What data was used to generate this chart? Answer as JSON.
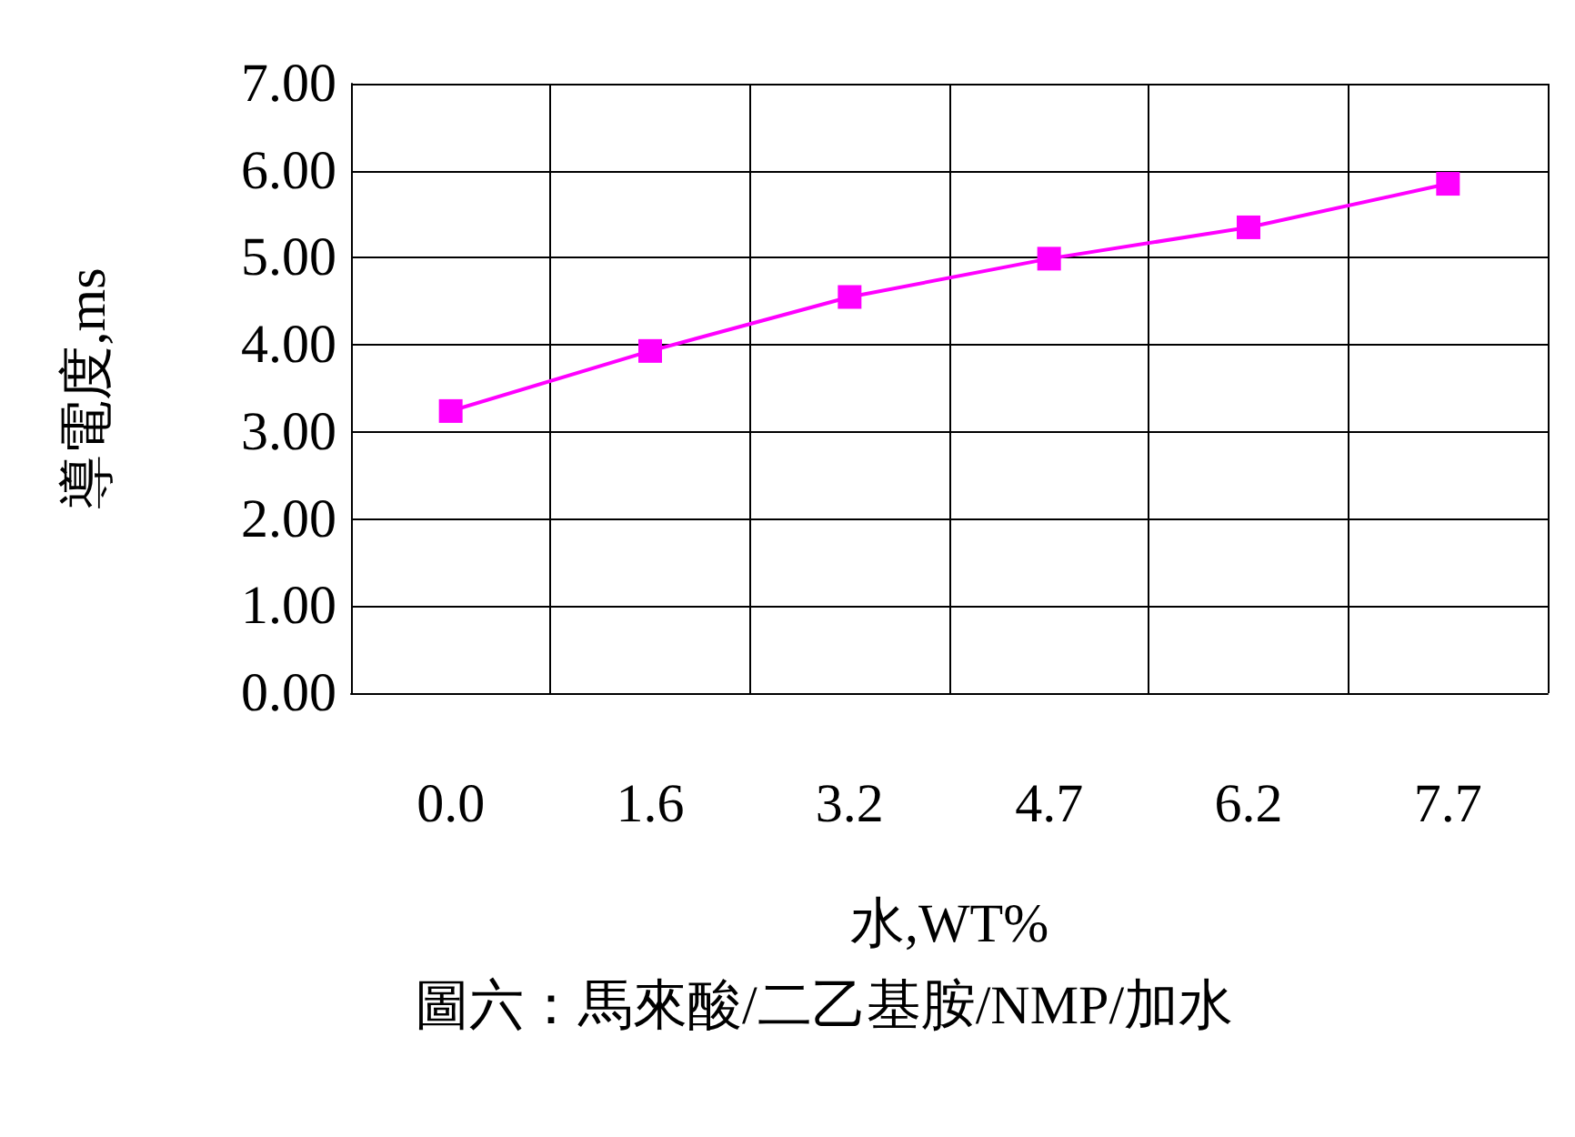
{
  "chart_data": {
    "type": "line",
    "xlabel": "水,WT%",
    "ylabel": "導電度,ms",
    "annotations": [
      "圖六：馬來酸/二乙基胺/NMP/加水"
    ],
    "categories": [
      "0.0",
      "1.6",
      "3.2",
      "4.7",
      "6.2",
      "7.7"
    ],
    "series": [
      {
        "color": "#ff00ff",
        "values": [
          3.24,
          3.93,
          4.55,
          4.99,
          5.35,
          5.85
        ]
      }
    ],
    "ylim": [
      0,
      7
    ],
    "yticks": [
      {
        "value": 0,
        "label": "0.00"
      },
      {
        "value": 1,
        "label": "1.00"
      },
      {
        "value": 2,
        "label": "2.00"
      },
      {
        "value": 3,
        "label": "3.00"
      },
      {
        "value": 4,
        "label": "4.00"
      },
      {
        "value": 5,
        "label": "5.00"
      },
      {
        "value": 6,
        "label": "6.00"
      },
      {
        "value": 7,
        "label": "7.00"
      }
    ],
    "grid": true,
    "marker": "square",
    "line_style": "solid"
  }
}
